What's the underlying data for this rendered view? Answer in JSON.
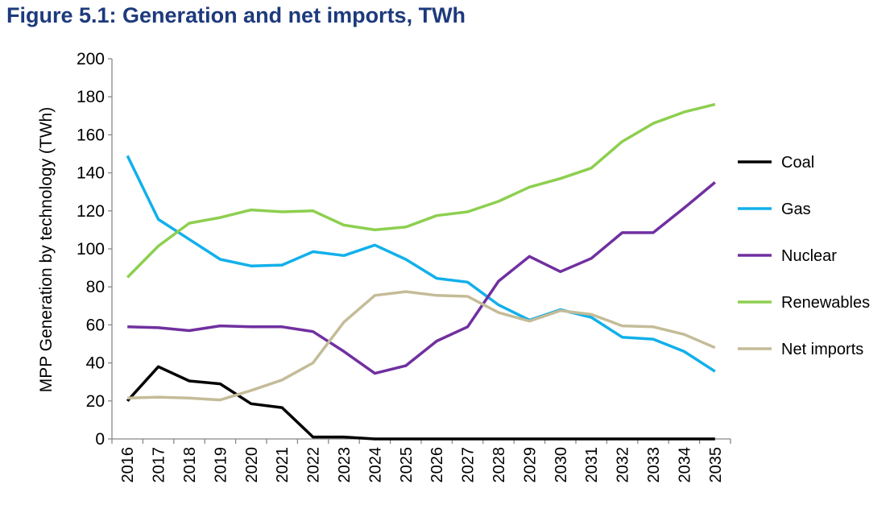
{
  "chart_data": {
    "type": "line",
    "title": "Figure 5.1: Generation and net imports, TWh",
    "xlabel": "",
    "ylabel": "MPP Generation by technology  (TWh)",
    "ylim": [
      0,
      200
    ],
    "yticks": [
      0,
      20,
      40,
      60,
      80,
      100,
      120,
      140,
      160,
      180,
      200
    ],
    "grid": false,
    "legend": "right",
    "categories": [
      "2016",
      "2017",
      "2018",
      "2019",
      "2020",
      "2021",
      "2022",
      "2023",
      "2024",
      "2025",
      "2026",
      "2027",
      "2028",
      "2029",
      "2030",
      "2031",
      "2032",
      "2033",
      "2034",
      "2035"
    ],
    "series": [
      {
        "name": "Coal",
        "color": "#000000",
        "values": [
          20,
          38,
          30.5,
          29,
          18.5,
          16.5,
          1,
          1,
          0,
          0,
          0,
          0,
          0,
          0,
          0,
          0,
          0,
          0,
          0,
          0
        ]
      },
      {
        "name": "Gas",
        "color": "#12b0ea",
        "values": [
          149,
          115.5,
          105,
          94.5,
          91,
          91.5,
          98.5,
          96.5,
          102,
          94.5,
          84.5,
          82.5,
          70.5,
          62.5,
          68,
          64,
          53.5,
          52.5,
          46,
          35.5
        ]
      },
      {
        "name": "Nuclear",
        "color": "#7030a0",
        "values": [
          59,
          58.5,
          57,
          59.5,
          59,
          59,
          56.5,
          46,
          34.5,
          38.5,
          51.5,
          59,
          83,
          96,
          88,
          95,
          108.5,
          108.5,
          121.5,
          135
        ]
      },
      {
        "name": "Renewables",
        "color": "#8dcf4f",
        "values": [
          85,
          101.5,
          113.5,
          116.5,
          120.5,
          119.5,
          120,
          112.5,
          110,
          111.5,
          117.5,
          119.5,
          125,
          132.5,
          137,
          142.5,
          156.5,
          166,
          172,
          176
        ]
      },
      {
        "name": "Net imports",
        "color": "#c4bc98",
        "values": [
          21.5,
          22,
          21.5,
          20.5,
          25.5,
          31,
          40,
          61.5,
          75.5,
          77.5,
          75.5,
          75,
          66.5,
          62,
          67.5,
          65.5,
          59.5,
          59,
          55,
          48
        ]
      }
    ]
  }
}
